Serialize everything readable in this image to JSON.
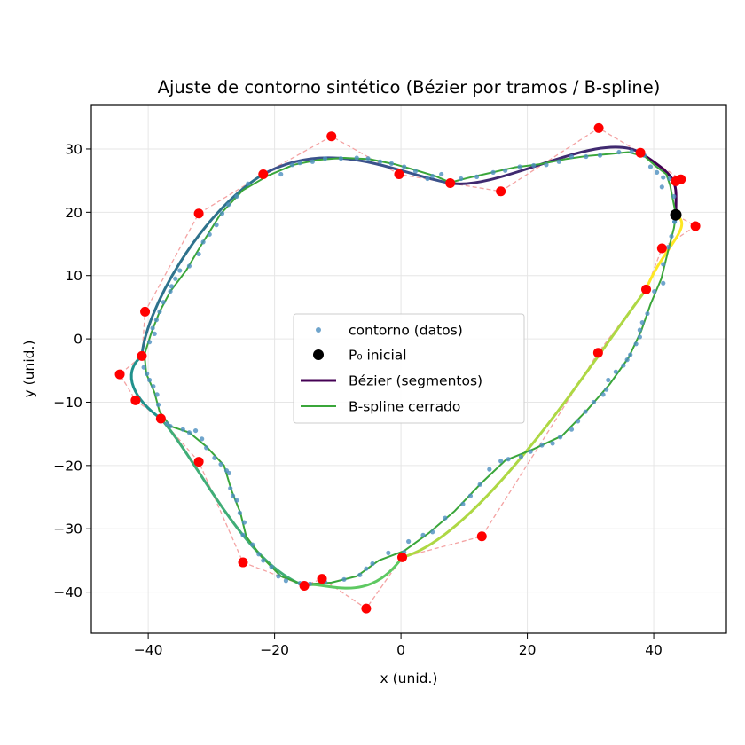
{
  "chart_data": {
    "type": "line",
    "title": "Ajuste de contorno sintético (Bézier por tramos / B-spline)",
    "xlabel": "x (unid.)",
    "ylabel": "y (unid.)",
    "xlim": [
      -49,
      51.5
    ],
    "ylim": [
      -46.5,
      37
    ],
    "xticks": [
      -40,
      -20,
      0,
      20,
      40
    ],
    "yticks": [
      -40,
      -30,
      -20,
      -10,
      0,
      10,
      20,
      30
    ],
    "grid": true,
    "legend": {
      "placement": "center",
      "entries": [
        {
          "label": "contorno (datos)",
          "kind": "point",
          "color": "#4c8fbf"
        },
        {
          "label": "P₀ inicial",
          "kind": "big-point",
          "color": "#000000"
        },
        {
          "label": "Bézier (segmentos)",
          "kind": "line",
          "color": "#440154"
        },
        {
          "label": "B-spline cerrado",
          "kind": "line",
          "color": "#3aa63a"
        }
      ]
    },
    "colors": {
      "data_points": "#4c8fbf",
      "control_points": "#ff0000",
      "control_polygon": "#f4a3a3",
      "start_point": "#000000",
      "bspline": "#3aa63a",
      "bezier_colormap": [
        "#440154",
        "#3b528b",
        "#21918c",
        "#5ec962",
        "#fde725"
      ]
    },
    "start_point": {
      "x": 43.5,
      "y": 19.6
    },
    "bezier_segments": [
      {
        "P0": [
          43.5,
          19.6
        ],
        "P1": [
          43.5,
          24.9
        ],
        "P2": [
          44.3,
          25.2
        ],
        "P3": [
          37.9,
          29.4
        ]
      },
      {
        "P0": [
          37.9,
          29.4
        ],
        "P1": [
          31.3,
          33.3
        ],
        "P2": [
          15.8,
          23.3
        ],
        "P3": [
          7.8,
          24.6
        ]
      },
      {
        "P0": [
          7.8,
          24.6
        ],
        "P1": [
          -0.3,
          26.0
        ],
        "P2": [
          -11.0,
          32.0
        ],
        "P3": [
          -21.8,
          26.0
        ]
      },
      {
        "P0": [
          -21.8,
          26.0
        ],
        "P1": [
          -32.0,
          19.8
        ],
        "P2": [
          -40.5,
          4.3
        ],
        "P3": [
          -41.0,
          -2.7
        ]
      },
      {
        "P0": [
          -41.0,
          -2.7
        ],
        "P1": [
          -44.5,
          -5.6
        ],
        "P2": [
          -42.0,
          -9.7
        ],
        "P3": [
          -38.0,
          -12.6
        ]
      },
      {
        "P0": [
          -38.0,
          -12.6
        ],
        "P1": [
          -32.0,
          -19.4
        ],
        "P2": [
          -25.0,
          -35.3
        ],
        "P3": [
          -15.3,
          -39.0
        ]
      },
      {
        "P0": [
          -15.3,
          -39.0
        ],
        "P1": [
          -12.5,
          -37.9
        ],
        "P2": [
          -5.5,
          -42.6
        ],
        "P3": [
          0.2,
          -34.5
        ]
      },
      {
        "P0": [
          0.2,
          -34.5
        ],
        "P1": [
          12.8,
          -31.2
        ],
        "P2": [
          31.2,
          -2.2
        ],
        "P3": [
          38.8,
          7.8
        ]
      },
      {
        "P0": [
          38.8,
          7.8
        ],
        "P1": [
          41.3,
          14.3
        ],
        "P2": [
          46.6,
          17.8
        ],
        "P3": [
          43.5,
          19.6
        ]
      }
    ],
    "data_points": [
      [
        43.3,
        18.5
      ],
      [
        43.2,
        22.5
      ],
      [
        42.5,
        25.3
      ],
      [
        41.5,
        25.5
      ],
      [
        41.3,
        24.0
      ],
      [
        40.5,
        26.3
      ],
      [
        39.5,
        27.2
      ],
      [
        38.5,
        29.0
      ],
      [
        36.5,
        29.6
      ],
      [
        34.5,
        29.5
      ],
      [
        31.5,
        29.0
      ],
      [
        29.3,
        28.8
      ],
      [
        27.0,
        28.8
      ],
      [
        25.0,
        28.0
      ],
      [
        23.0,
        27.5
      ],
      [
        21.0,
        27.4
      ],
      [
        18.8,
        27.2
      ],
      [
        16.5,
        26.6
      ],
      [
        14.6,
        26.3
      ],
      [
        12.0,
        25.6
      ],
      [
        9.5,
        25.3
      ],
      [
        7.6,
        24.6
      ],
      [
        6.4,
        26.0
      ],
      [
        5.0,
        25.7
      ],
      [
        4.2,
        25.3
      ],
      [
        2.3,
        26.5
      ],
      [
        0.5,
        27.2
      ],
      [
        -1.5,
        27.7
      ],
      [
        -3.3,
        28.0
      ],
      [
        -5.2,
        28.5
      ],
      [
        -7.0,
        28.6
      ],
      [
        -9.5,
        28.5
      ],
      [
        -12.0,
        28.5
      ],
      [
        -14.0,
        28.0
      ],
      [
        -16.0,
        27.8
      ],
      [
        -17.2,
        27.5
      ],
      [
        -19.0,
        26.0
      ],
      [
        -21.8,
        26.1
      ],
      [
        -24.2,
        24.5
      ],
      [
        -26.0,
        22.5
      ],
      [
        -27.3,
        21.2
      ],
      [
        -28.3,
        19.8
      ],
      [
        -29.2,
        18.0
      ],
      [
        -30.3,
        16.5
      ],
      [
        -31.3,
        15.3
      ],
      [
        -32.0,
        13.4
      ],
      [
        -33.5,
        11.5
      ],
      [
        -35.0,
        10.8
      ],
      [
        -35.7,
        9.5
      ],
      [
        -36.3,
        8.3
      ],
      [
        -36.5,
        7.5
      ],
      [
        -37.6,
        5.8
      ],
      [
        -38.2,
        4.3
      ],
      [
        -38.7,
        3.0
      ],
      [
        -39.3,
        1.7
      ],
      [
        -39.0,
        0.8
      ],
      [
        -39.8,
        -0.5
      ],
      [
        -40.9,
        -2.7
      ],
      [
        -40.7,
        -4.5
      ],
      [
        -40.2,
        -5.5
      ],
      [
        -39.8,
        -6.5
      ],
      [
        -39.2,
        -7.5
      ],
      [
        -38.6,
        -8.8
      ],
      [
        -38.4,
        -10.4
      ],
      [
        -38.0,
        -12.6
      ],
      [
        -37.0,
        -13.4
      ],
      [
        -36.5,
        -13.8
      ],
      [
        -34.5,
        -14.3
      ],
      [
        -33.5,
        -14.8
      ],
      [
        -32.5,
        -14.5
      ],
      [
        -31.5,
        -15.8
      ],
      [
        -30.8,
        -17.2
      ],
      [
        -29.5,
        -18.8
      ],
      [
        -28.5,
        -19.8
      ],
      [
        -27.6,
        -20.8
      ],
      [
        -27.2,
        -21.2
      ],
      [
        -27.0,
        -23.6
      ],
      [
        -26.6,
        -24.8
      ],
      [
        -26.0,
        -25.5
      ],
      [
        -25.5,
        -27.5
      ],
      [
        -24.8,
        -29.0
      ],
      [
        -25.0,
        -31.0
      ],
      [
        -23.5,
        -32.5
      ],
      [
        -22.5,
        -34.0
      ],
      [
        -21.8,
        -35.0
      ],
      [
        -20.5,
        -36.0
      ],
      [
        -19.4,
        -37.5
      ],
      [
        -18.2,
        -38.2
      ],
      [
        -16.0,
        -38.6
      ],
      [
        -14.4,
        -38.7
      ],
      [
        -12.0,
        -38.4
      ],
      [
        -9.0,
        -38.0
      ],
      [
        -6.5,
        -37.3
      ],
      [
        -5.5,
        -36.3
      ],
      [
        -4.5,
        -35.5
      ],
      [
        -2.0,
        -33.8
      ],
      [
        0.5,
        -33.7
      ],
      [
        1.2,
        -32.0
      ],
      [
        3.5,
        -31.0
      ],
      [
        5.0,
        -30.5
      ],
      [
        7.0,
        -28.3
      ],
      [
        9.8,
        -26.1
      ],
      [
        11.0,
        -24.8
      ],
      [
        12.5,
        -23.0
      ],
      [
        14.0,
        -20.6
      ],
      [
        15.8,
        -19.3
      ],
      [
        17.0,
        -19.0
      ],
      [
        19.0,
        -18.6
      ],
      [
        20.5,
        -17.8
      ],
      [
        22.3,
        -16.8
      ],
      [
        24.0,
        -16.5
      ],
      [
        25.2,
        -15.5
      ],
      [
        27.0,
        -14.3
      ],
      [
        28.0,
        -13.0
      ],
      [
        29.2,
        -11.5
      ],
      [
        30.5,
        -10.0
      ],
      [
        32.0,
        -8.8
      ],
      [
        32.5,
        -8.0
      ],
      [
        32.8,
        -6.5
      ],
      [
        34.0,
        -5.2
      ],
      [
        35.2,
        -4.2
      ],
      [
        35.8,
        -3.3
      ],
      [
        36.3,
        -2.5
      ],
      [
        37.2,
        -0.8
      ],
      [
        37.8,
        0.3
      ],
      [
        37.8,
        1.4
      ],
      [
        38.2,
        2.6
      ],
      [
        39.0,
        4.0
      ],
      [
        40.1,
        7.5
      ],
      [
        41.5,
        8.8
      ],
      [
        41.5,
        11.8
      ],
      [
        42.3,
        14.5
      ],
      [
        42.8,
        16.2
      ],
      [
        43.3,
        18.5
      ]
    ],
    "bspline": [
      [
        43.5,
        19.6
      ],
      [
        42.6,
        24.2
      ],
      [
        42.0,
        26.0
      ],
      [
        40.3,
        27.3
      ],
      [
        38.6,
        28.8
      ],
      [
        36.0,
        29.5
      ],
      [
        33.0,
        29.2
      ],
      [
        29.5,
        28.9
      ],
      [
        26.0,
        28.4
      ],
      [
        22.0,
        27.6
      ],
      [
        18.0,
        27.1
      ],
      [
        14.0,
        26.2
      ],
      [
        10.5,
        25.4
      ],
      [
        7.8,
        24.7
      ],
      [
        5.5,
        25.7
      ],
      [
        2.5,
        26.6
      ],
      [
        -1.0,
        27.6
      ],
      [
        -5.0,
        28.4
      ],
      [
        -9.0,
        28.6
      ],
      [
        -13.0,
        28.3
      ],
      [
        -17.0,
        27.5
      ],
      [
        -21.0,
        25.8
      ],
      [
        -25.0,
        23.5
      ],
      [
        -28.5,
        19.8
      ],
      [
        -31.5,
        15.0
      ],
      [
        -34.0,
        10.8
      ],
      [
        -36.5,
        7.5
      ],
      [
        -38.2,
        4.3
      ],
      [
        -39.5,
        1.0
      ],
      [
        -40.6,
        -2.5
      ],
      [
        -40.3,
        -5.5
      ],
      [
        -39.0,
        -8.5
      ],
      [
        -38.2,
        -11.5
      ],
      [
        -36.5,
        -13.8
      ],
      [
        -33.5,
        -14.8
      ],
      [
        -30.8,
        -17.0
      ],
      [
        -28.0,
        -20.0
      ],
      [
        -26.8,
        -24.0
      ],
      [
        -25.4,
        -27.5
      ],
      [
        -24.5,
        -31.2
      ],
      [
        -22.0,
        -34.5
      ],
      [
        -19.0,
        -37.5
      ],
      [
        -15.5,
        -38.8
      ],
      [
        -11.0,
        -38.5
      ],
      [
        -7.0,
        -37.5
      ],
      [
        -3.5,
        -35.0
      ],
      [
        0.5,
        -33.5
      ],
      [
        4.5,
        -30.6
      ],
      [
        8.5,
        -27.2
      ],
      [
        12.5,
        -23.0
      ],
      [
        16.5,
        -19.2
      ],
      [
        21.0,
        -17.4
      ],
      [
        25.5,
        -15.3
      ],
      [
        29.5,
        -11.2
      ],
      [
        33.0,
        -7.2
      ],
      [
        36.0,
        -3.0
      ],
      [
        38.0,
        1.2
      ],
      [
        39.5,
        5.5
      ],
      [
        41.2,
        9.5
      ],
      [
        42.3,
        14.0
      ],
      [
        43.2,
        17.5
      ],
      [
        43.5,
        19.6
      ]
    ]
  }
}
